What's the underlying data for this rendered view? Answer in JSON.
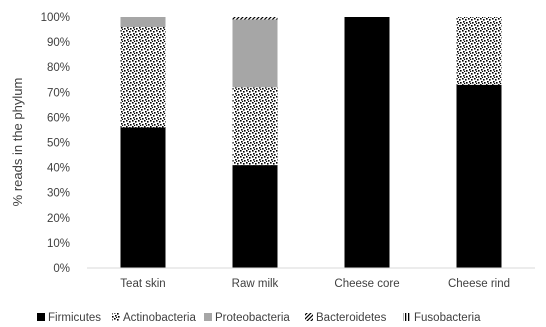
{
  "chart_data": {
    "type": "bar",
    "stacked": true,
    "percent": true,
    "categories": [
      "Teat skin",
      "Raw milk",
      "Cheese core",
      "Cheese rind"
    ],
    "series": [
      {
        "name": "Firmicutes",
        "pattern": "solid-black",
        "color": "#000000",
        "values": [
          56,
          41,
          100,
          73
        ]
      },
      {
        "name": "Actinobacteria",
        "pattern": "speckled",
        "color": "#000000",
        "values": [
          40,
          31,
          0,
          27
        ]
      },
      {
        "name": "Proteobacteria",
        "pattern": "solid-gray",
        "color": "#a6a6a6",
        "values": [
          4,
          27,
          0,
          0
        ]
      },
      {
        "name": "Bacteroidetes",
        "pattern": "diagonal-hatch",
        "color": "#000000",
        "values": [
          0,
          1,
          0,
          0
        ]
      },
      {
        "name": "Fusobacteria",
        "pattern": "vertical-hatch",
        "color": "#000000",
        "values": [
          0,
          0,
          0,
          0
        ]
      }
    ],
    "title": "",
    "xlabel": "",
    "ylabel": "% reads in the phylum",
    "ylim": [
      0,
      100
    ],
    "yticks": [
      "0%",
      "10%",
      "20%",
      "30%",
      "40%",
      "50%",
      "60%",
      "70%",
      "80%",
      "90%",
      "100%"
    ],
    "grid": false,
    "legend": "bottom"
  }
}
